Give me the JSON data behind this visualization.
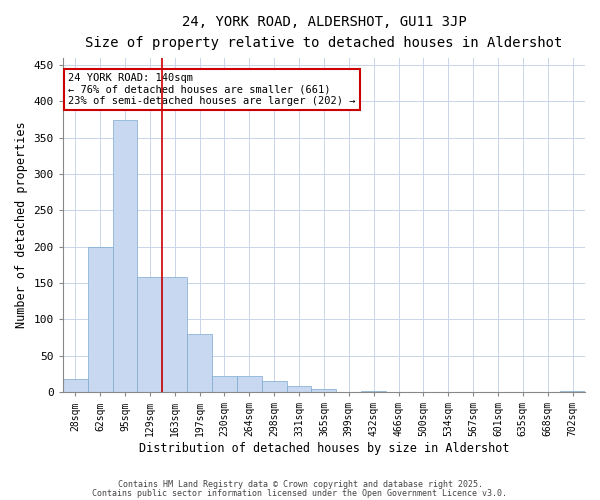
{
  "title": "24, YORK ROAD, ALDERSHOT, GU11 3JP",
  "subtitle": "Size of property relative to detached houses in Aldershot",
  "xlabel": "Distribution of detached houses by size in Aldershot",
  "ylabel": "Number of detached properties",
  "categories": [
    "28sqm",
    "62sqm",
    "95sqm",
    "129sqm",
    "163sqm",
    "197sqm",
    "230sqm",
    "264sqm",
    "298sqm",
    "331sqm",
    "365sqm",
    "399sqm",
    "432sqm",
    "466sqm",
    "500sqm",
    "534sqm",
    "567sqm",
    "601sqm",
    "635sqm",
    "668sqm",
    "702sqm"
  ],
  "values": [
    18,
    200,
    375,
    158,
    158,
    80,
    22,
    22,
    15,
    8,
    4,
    0,
    2,
    0,
    0,
    0,
    0,
    0,
    0,
    0,
    2
  ],
  "bar_color": "#c8d8f0",
  "bar_edge_color": "#7aaad0",
  "red_line_x": 3.5,
  "annotation_text": "24 YORK ROAD: 140sqm\n← 76% of detached houses are smaller (661)\n23% of semi-detached houses are larger (202) →",
  "annotation_box_color": "#ffffff",
  "annotation_box_edge_color": "#cc0000",
  "red_line_color": "#cc0000",
  "grid_color": "#c8d4e8",
  "bg_color": "#ffffff",
  "fig_bg_color": "#ffffff",
  "ylim": [
    0,
    460
  ],
  "yticks": [
    0,
    50,
    100,
    150,
    200,
    250,
    300,
    350,
    400,
    450
  ],
  "footer1": "Contains HM Land Registry data © Crown copyright and database right 2025.",
  "footer2": "Contains public sector information licensed under the Open Government Licence v3.0."
}
